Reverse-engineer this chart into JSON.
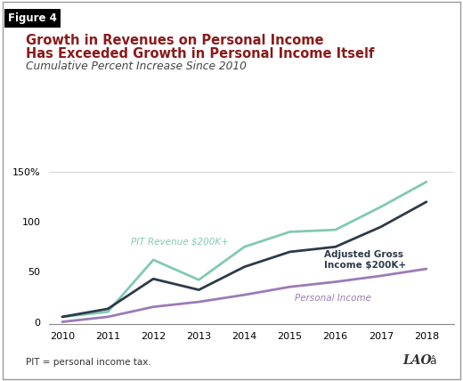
{
  "years": [
    2010,
    2011,
    2012,
    2013,
    2014,
    2015,
    2016,
    2017,
    2018
  ],
  "pit_revenue": [
    5,
    10,
    62,
    42,
    75,
    90,
    92,
    115,
    140
  ],
  "adj_gross_income": [
    5,
    13,
    43,
    32,
    55,
    70,
    75,
    95,
    120
  ],
  "personal_income": [
    0,
    5,
    15,
    20,
    27,
    35,
    40,
    46,
    53
  ],
  "pit_color": "#82C9B5",
  "agi_color": "#2D3A4A",
  "pi_color": "#9B7BB5",
  "figure_label": "Figure 4",
  "title_line1": "Growth in Revenues on Personal Income",
  "title_line2": "Has Exceeded Growth in Personal Income Itself",
  "subtitle": "Cumulative Percent Increase Since 2010",
  "title_color": "#8B1A1A",
  "subtitle_color": "#333333",
  "footnote": "PIT = personal income tax.",
  "ylim": [
    -2,
    158
  ],
  "xlim": [
    2009.7,
    2018.6
  ],
  "yticks": [
    0,
    50,
    100,
    150
  ],
  "yticklabels": [
    "0",
    "50",
    "100",
    "150%"
  ],
  "background_color": "#FFFFFF"
}
